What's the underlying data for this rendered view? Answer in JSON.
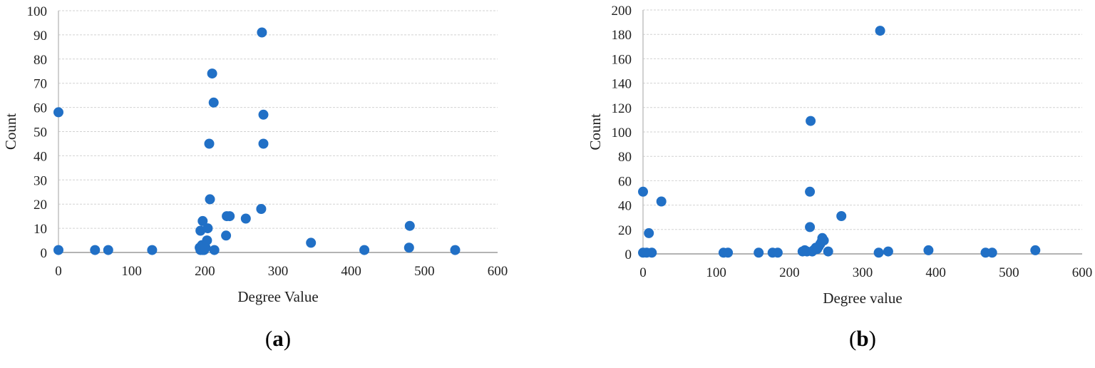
{
  "style": {
    "background": "#ffffff",
    "grid_color": "#d2d2d2",
    "zero_line_color": "#9a9a9a",
    "axis_line_color": "#bdbdbd",
    "text_color": "#1f1f1f"
  },
  "captions": {
    "a": {
      "prefix": "(",
      "letter": "a",
      "suffix": ")"
    },
    "b": {
      "prefix": "(",
      "letter": "b",
      "suffix": ")"
    }
  },
  "chart_data": [
    {
      "id": "chart-a",
      "type": "scatter",
      "title": "",
      "xlabel": "Degree Value",
      "ylabel": "Count",
      "xlim": [
        0,
        600
      ],
      "ylim": [
        0,
        100
      ],
      "xticks": [
        0,
        100,
        200,
        300,
        400,
        500,
        600
      ],
      "yticks": [
        0,
        10,
        20,
        30,
        40,
        50,
        60,
        70,
        80,
        90,
        100
      ],
      "grid": true,
      "legend": "none",
      "marker_color": "#2170c6",
      "points": [
        [
          0,
          58
        ],
        [
          0,
          1
        ],
        [
          50,
          1
        ],
        [
          68,
          1
        ],
        [
          128,
          1
        ],
        [
          193,
          2
        ],
        [
          194,
          1
        ],
        [
          196,
          3
        ],
        [
          197,
          1
        ],
        [
          199,
          1
        ],
        [
          201,
          2
        ],
        [
          194,
          9
        ],
        [
          197,
          13
        ],
        [
          204,
          10
        ],
        [
          203,
          5
        ],
        [
          207,
          22
        ],
        [
          210,
          74
        ],
        [
          212,
          62
        ],
        [
          206,
          45
        ],
        [
          213,
          1
        ],
        [
          229,
          7
        ],
        [
          230,
          15
        ],
        [
          234,
          15
        ],
        [
          256,
          14
        ],
        [
          277,
          18
        ],
        [
          278,
          91
        ],
        [
          280,
          57
        ],
        [
          280,
          45
        ],
        [
          345,
          4
        ],
        [
          418,
          1
        ],
        [
          480,
          11
        ],
        [
          479,
          2
        ],
        [
          542,
          1
        ]
      ]
    },
    {
      "id": "chart-b",
      "type": "scatter",
      "title": "",
      "xlabel": "Degree value",
      "ylabel": "Count",
      "xlim": [
        0,
        600
      ],
      "ylim": [
        0,
        200
      ],
      "xticks": [
        0,
        100,
        200,
        300,
        400,
        500,
        600
      ],
      "yticks": [
        0,
        20,
        40,
        60,
        80,
        100,
        120,
        140,
        160,
        180,
        200
      ],
      "grid": true,
      "legend": "none",
      "marker_color": "#2170c6",
      "points": [
        [
          0,
          51
        ],
        [
          0,
          1
        ],
        [
          5,
          1
        ],
        [
          8,
          17
        ],
        [
          12,
          1
        ],
        [
          25,
          43
        ],
        [
          110,
          1
        ],
        [
          116,
          1
        ],
        [
          158,
          1
        ],
        [
          177,
          1
        ],
        [
          184,
          1
        ],
        [
          218,
          2
        ],
        [
          221,
          3
        ],
        [
          224,
          2
        ],
        [
          228,
          51
        ],
        [
          228,
          22
        ],
        [
          229,
          109
        ],
        [
          231,
          2
        ],
        [
          233,
          3
        ],
        [
          236,
          5
        ],
        [
          238,
          4
        ],
        [
          240,
          6
        ],
        [
          242,
          8
        ],
        [
          244,
          10
        ],
        [
          245,
          13
        ],
        [
          247,
          11
        ],
        [
          253,
          2
        ],
        [
          271,
          31
        ],
        [
          322,
          1
        ],
        [
          324,
          183
        ],
        [
          335,
          2
        ],
        [
          390,
          3
        ],
        [
          468,
          1
        ],
        [
          477,
          1
        ],
        [
          536,
          3
        ]
      ]
    }
  ]
}
